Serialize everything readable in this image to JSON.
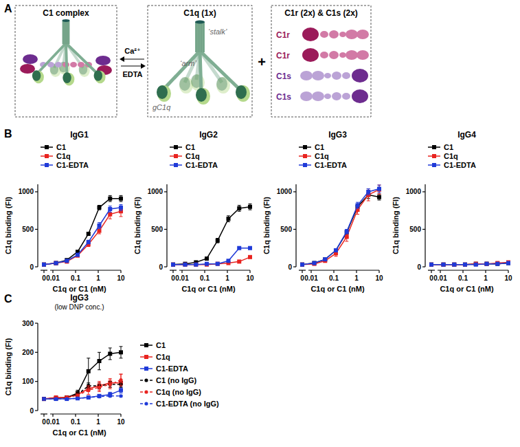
{
  "panel_labels": [
    "A",
    "B",
    "C"
  ],
  "diagram": {
    "boxes": [
      {
        "title": "C1 complex"
      },
      {
        "title": "C1q (1x)",
        "labels": [
          "‘stalk’",
          "‘arm’",
          "gC1q"
        ]
      },
      {
        "title": "C1r (2x) & C1s (2x)",
        "proteins": [
          "C1r",
          "C1r",
          "C1s",
          "C1s"
        ]
      }
    ],
    "arrows": [
      "Ca²⁺",
      "EDTA"
    ],
    "operator": "+"
  },
  "chart_data": [
    {
      "type": "line",
      "title": "IgG1",
      "x_label": "C1q or C1 (nM)",
      "y_label": "C1q binding (FI)",
      "log": "x",
      "x": [
        0,
        0.0137,
        0.0412,
        0.123,
        0.37,
        1.11,
        3.33,
        10
      ],
      "xlim": [
        0,
        10
      ],
      "xticks": [
        0,
        0.01,
        0.1,
        1,
        10
      ],
      "ylim": [
        0,
        1100
      ],
      "yticks": [
        0,
        500,
        1000
      ],
      "grid": false,
      "legend": "upper left",
      "series": [
        {
          "name": "C1",
          "color": "#000000",
          "marker": "square",
          "line_style": "solid",
          "values": [
            30,
            50,
            90,
            200,
            440,
            790,
            910,
            910
          ],
          "errors": [
            5,
            5,
            10,
            15,
            20,
            30,
            40,
            40
          ]
        },
        {
          "name": "C1q",
          "color": "#e8231f",
          "marker": "square",
          "line_style": "solid",
          "values": [
            30,
            50,
            70,
            150,
            300,
            480,
            700,
            740
          ],
          "errors": [
            5,
            5,
            10,
            15,
            30,
            40,
            60,
            70
          ]
        },
        {
          "name": "C1-EDTA",
          "color": "#1f3ad8",
          "marker": "square",
          "line_style": "solid",
          "values": [
            30,
            50,
            80,
            160,
            330,
            550,
            770,
            790
          ],
          "errors": [
            5,
            5,
            10,
            15,
            25,
            40,
            40,
            40
          ]
        }
      ]
    },
    {
      "type": "line",
      "title": "IgG2",
      "x_label": "C1q or C1 (nM)",
      "y_label": "C1q binding (FI)",
      "log": "x",
      "x": [
        0,
        0.0137,
        0.0412,
        0.123,
        0.37,
        1.11,
        3.33,
        10
      ],
      "xlim": [
        0,
        10
      ],
      "xticks": [
        0,
        0.01,
        0.1,
        1,
        10
      ],
      "ylim": [
        0,
        1100
      ],
      "yticks": [
        0,
        500,
        1000
      ],
      "grid": false,
      "legend": "upper left",
      "series": [
        {
          "name": "C1",
          "color": "#000000",
          "marker": "square",
          "line_style": "solid",
          "values": [
            30,
            40,
            60,
            110,
            350,
            640,
            780,
            800
          ],
          "errors": [
            5,
            5,
            5,
            10,
            30,
            40,
            40,
            40
          ]
        },
        {
          "name": "C1q",
          "color": "#e8231f",
          "marker": "square",
          "line_style": "solid",
          "values": [
            30,
            30,
            30,
            30,
            40,
            50,
            70,
            130
          ],
          "errors": [
            5,
            5,
            5,
            5,
            5,
            5,
            10,
            10
          ]
        },
        {
          "name": "C1-EDTA",
          "color": "#1f3ad8",
          "marker": "square",
          "line_style": "solid",
          "values": [
            30,
            30,
            30,
            40,
            40,
            80,
            250,
            250
          ],
          "errors": [
            5,
            5,
            5,
            5,
            5,
            10,
            10,
            10
          ]
        }
      ]
    },
    {
      "type": "line",
      "title": "IgG3",
      "x_label": "C1q or C1 (nM)",
      "y_label": "C1q binding (FI)",
      "log": "x",
      "x": [
        0,
        0.0137,
        0.0412,
        0.123,
        0.37,
        1.11,
        3.33,
        10
      ],
      "xlim": [
        0,
        10
      ],
      "xticks": [
        0,
        0.01,
        0.1,
        1,
        10
      ],
      "ylim": [
        0,
        1100
      ],
      "yticks": [
        0,
        500,
        1000
      ],
      "grid": false,
      "legend": "upper left",
      "series": [
        {
          "name": "C1",
          "color": "#000000",
          "marker": "square",
          "line_style": "solid",
          "values": [
            30,
            50,
            100,
            220,
            460,
            800,
            960,
            930
          ],
          "errors": [
            5,
            10,
            15,
            20,
            30,
            40,
            50,
            40
          ]
        },
        {
          "name": "C1q",
          "color": "#e8231f",
          "marker": "square",
          "line_style": "solid",
          "values": [
            30,
            40,
            80,
            180,
            400,
            760,
            960,
            1030
          ],
          "errors": [
            5,
            10,
            20,
            40,
            60,
            60,
            80,
            60
          ]
        },
        {
          "name": "C1-EDTA",
          "color": "#1f3ad8",
          "marker": "square",
          "line_style": "solid",
          "values": [
            30,
            50,
            100,
            220,
            470,
            820,
            1000,
            1040
          ],
          "errors": [
            5,
            10,
            15,
            20,
            30,
            40,
            40,
            50
          ]
        }
      ]
    },
    {
      "type": "line",
      "title": "IgG4",
      "x_label": "C1q or C1 (nM)",
      "y_label": "C1q binding (FI)",
      "log": "x",
      "x": [
        0,
        0.0137,
        0.0412,
        0.123,
        0.37,
        1.11,
        3.33,
        10
      ],
      "xlim": [
        0,
        10
      ],
      "xticks": [
        0,
        0.01,
        0.1,
        1,
        10
      ],
      "ylim": [
        0,
        1100
      ],
      "yticks": [
        0,
        500,
        1000
      ],
      "grid": false,
      "legend": "upper left",
      "series": [
        {
          "name": "C1",
          "color": "#000000",
          "marker": "square",
          "line_style": "solid",
          "values": [
            30,
            30,
            30,
            30,
            40,
            40,
            40,
            50
          ],
          "errors": [
            5,
            5,
            5,
            5,
            5,
            5,
            5,
            5
          ]
        },
        {
          "name": "C1q",
          "color": "#e8231f",
          "marker": "square",
          "line_style": "solid",
          "values": [
            30,
            30,
            30,
            30,
            40,
            40,
            50,
            60
          ],
          "errors": [
            5,
            5,
            5,
            5,
            5,
            5,
            10,
            10
          ]
        },
        {
          "name": "C1-EDTA",
          "color": "#1f3ad8",
          "marker": "square",
          "line_style": "solid",
          "values": [
            30,
            30,
            30,
            30,
            30,
            40,
            40,
            50
          ],
          "errors": [
            5,
            5,
            5,
            5,
            5,
            5,
            5,
            5
          ]
        }
      ]
    },
    {
      "type": "line",
      "title": "IgG3",
      "subtitle": "(low DNP conc.)",
      "x_label": "C1q or C1 (nM)",
      "y_label": "C1q binding (FI)",
      "log": "x",
      "x": [
        0,
        0.0137,
        0.0412,
        0.123,
        0.37,
        1.11,
        3.33,
        10
      ],
      "xlim": [
        0,
        10
      ],
      "xticks": [
        0,
        0.01,
        0.1,
        1,
        10
      ],
      "ylim": [
        0,
        300
      ],
      "yticks": [
        0,
        100,
        200,
        300
      ],
      "grid": false,
      "legend": "right",
      "series": [
        {
          "name": "C1",
          "color": "#000000",
          "marker": "square",
          "line_style": "solid",
          "values": [
            40,
            42,
            45,
            60,
            135,
            170,
            195,
            200
          ],
          "errors": [
            3,
            3,
            5,
            10,
            45,
            30,
            20,
            20
          ]
        },
        {
          "name": "C1q",
          "color": "#e8231f",
          "marker": "square",
          "line_style": "solid",
          "values": [
            40,
            45,
            45,
            55,
            75,
            85,
            95,
            95
          ],
          "errors": [
            3,
            3,
            5,
            5,
            10,
            15,
            15,
            30
          ]
        },
        {
          "name": "C1-EDTA",
          "color": "#1f3ad8",
          "marker": "square",
          "line_style": "solid",
          "values": [
            40,
            40,
            40,
            42,
            45,
            50,
            55,
            70
          ],
          "errors": [
            3,
            3,
            3,
            3,
            5,
            5,
            8,
            10
          ]
        },
        {
          "name": "C1 (no IgG)",
          "color": "#000000",
          "marker": "circle",
          "line_style": "dashed",
          "values": [
            40,
            42,
            45,
            55,
            85,
            85,
            90,
            90
          ],
          "errors": [
            3,
            3,
            5,
            5,
            10,
            10,
            10,
            10
          ]
        },
        {
          "name": "C1q (no IgG)",
          "color": "#e8231f",
          "marker": "circle",
          "line_style": "dashed",
          "values": [
            40,
            43,
            45,
            52,
            70,
            80,
            90,
            105
          ],
          "errors": [
            3,
            3,
            5,
            5,
            15,
            15,
            15,
            20
          ]
        },
        {
          "name": "C1-EDTA (no IgG)",
          "color": "#1f3ad8",
          "marker": "circle",
          "line_style": "dashed",
          "values": [
            40,
            40,
            40,
            42,
            45,
            48,
            50,
            50
          ],
          "errors": [
            3,
            3,
            3,
            3,
            3,
            3,
            3,
            3
          ]
        }
      ]
    }
  ]
}
